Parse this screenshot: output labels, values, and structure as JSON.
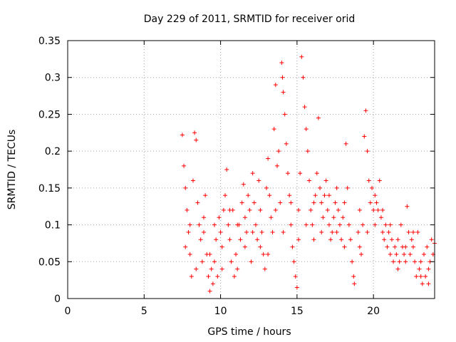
{
  "chart_data": {
    "type": "scatter",
    "title": "Day 229 of 2011, SRMTID for receiver orid",
    "xlabel": "GPS time / hours",
    "ylabel": "SRMTID / TECUs",
    "xlim": [
      0,
      24
    ],
    "ylim": [
      0,
      0.35
    ],
    "x_ticks": [
      0,
      5,
      10,
      15,
      20
    ],
    "y_ticks": [
      0,
      0.05,
      0.1,
      0.15,
      0.2,
      0.25,
      0.3,
      0.35
    ],
    "x_tick_labels": [
      "0",
      "5",
      "10",
      "15",
      "20"
    ],
    "y_tick_labels": [
      "0",
      "0.05",
      "0.1",
      "0.15",
      "0.2",
      "0.25",
      "0.3",
      "0.35"
    ],
    "grid": true,
    "marker": "plus",
    "series": [
      {
        "name": "SRMTID",
        "color": "#ff0000",
        "points": [
          [
            7.5,
            0.222
          ],
          [
            7.6,
            0.18
          ],
          [
            7.7,
            0.15
          ],
          [
            7.8,
            0.12
          ],
          [
            7.9,
            0.09
          ],
          [
            8.0,
            0.06
          ],
          [
            8.1,
            0.03
          ],
          [
            8.2,
            0.16
          ],
          [
            8.3,
            0.225
          ],
          [
            8.4,
            0.215
          ],
          [
            8.5,
            0.13
          ],
          [
            8.6,
            0.1
          ],
          [
            8.7,
            0.08
          ],
          [
            8.8,
            0.05
          ],
          [
            8.9,
            0.11
          ],
          [
            9.0,
            0.14
          ],
          [
            9.1,
            0.06
          ],
          [
            9.2,
            0.03
          ],
          [
            9.3,
            0.01
          ],
          [
            9.4,
            0.04
          ],
          [
            9.5,
            0.02
          ],
          [
            9.6,
            0.05
          ],
          [
            9.7,
            0.08
          ],
          [
            9.8,
            0.03
          ],
          [
            9.9,
            0.11
          ],
          [
            10.0,
            0.09
          ],
          [
            10.1,
            0.07
          ],
          [
            10.2,
            0.12
          ],
          [
            10.3,
            0.14
          ],
          [
            10.4,
            0.175
          ],
          [
            10.5,
            0.1
          ],
          [
            10.6,
            0.08
          ],
          [
            10.7,
            0.05
          ],
          [
            10.8,
            0.12
          ],
          [
            10.9,
            0.03
          ],
          [
            11.0,
            0.06
          ],
          [
            11.1,
            0.04
          ],
          [
            11.2,
            0.1
          ],
          [
            11.3,
            0.08
          ],
          [
            11.4,
            0.13
          ],
          [
            11.5,
            0.155
          ],
          [
            11.6,
            0.11
          ],
          [
            11.7,
            0.09
          ],
          [
            11.8,
            0.14
          ],
          [
            11.9,
            0.12
          ],
          [
            12.0,
            0.05
          ],
          [
            12.1,
            0.17
          ],
          [
            12.2,
            0.13
          ],
          [
            12.3,
            0.1
          ],
          [
            12.4,
            0.08
          ],
          [
            12.5,
            0.16
          ],
          [
            12.6,
            0.12
          ],
          [
            12.7,
            0.09
          ],
          [
            12.8,
            0.06
          ],
          [
            12.9,
            0.04
          ],
          [
            13.0,
            0.15
          ],
          [
            13.1,
            0.19
          ],
          [
            13.2,
            0.14
          ],
          [
            13.3,
            0.11
          ],
          [
            13.4,
            0.09
          ],
          [
            13.5,
            0.23
          ],
          [
            13.6,
            0.29
          ],
          [
            13.7,
            0.18
          ],
          [
            13.8,
            0.2
          ],
          [
            13.9,
            0.13
          ],
          [
            14.0,
            0.32
          ],
          [
            14.05,
            0.3
          ],
          [
            14.1,
            0.28
          ],
          [
            14.2,
            0.25
          ],
          [
            14.3,
            0.21
          ],
          [
            14.4,
            0.17
          ],
          [
            14.5,
            0.14
          ],
          [
            14.6,
            0.1
          ],
          [
            14.7,
            0.07
          ],
          [
            14.8,
            0.05
          ],
          [
            14.9,
            0.03
          ],
          [
            15.0,
            0.015
          ],
          [
            15.1,
            0.12
          ],
          [
            15.2,
            0.17
          ],
          [
            15.3,
            0.328
          ],
          [
            15.4,
            0.3
          ],
          [
            15.5,
            0.26
          ],
          [
            15.6,
            0.23
          ],
          [
            15.7,
            0.2
          ],
          [
            15.8,
            0.16
          ],
          [
            15.9,
            0.12
          ],
          [
            16.0,
            0.1
          ],
          [
            16.1,
            0.08
          ],
          [
            16.2,
            0.14
          ],
          [
            16.3,
            0.17
          ],
          [
            16.4,
            0.245
          ],
          [
            16.5,
            0.15
          ],
          [
            16.6,
            0.13
          ],
          [
            16.7,
            0.11
          ],
          [
            16.8,
            0.14
          ],
          [
            16.9,
            0.16
          ],
          [
            17.0,
            0.12
          ],
          [
            17.1,
            0.1
          ],
          [
            17.2,
            0.08
          ],
          [
            17.3,
            0.09
          ],
          [
            17.4,
            0.11
          ],
          [
            17.5,
            0.13
          ],
          [
            17.6,
            0.15
          ],
          [
            17.7,
            0.12
          ],
          [
            17.8,
            0.1
          ],
          [
            17.9,
            0.08
          ],
          [
            18.0,
            0.11
          ],
          [
            18.1,
            0.13
          ],
          [
            18.2,
            0.21
          ],
          [
            18.3,
            0.15
          ],
          [
            18.4,
            0.1
          ],
          [
            18.5,
            0.08
          ],
          [
            18.6,
            0.05
          ],
          [
            18.7,
            0.03
          ],
          [
            18.75,
            0.02
          ],
          [
            19.0,
            0.09
          ],
          [
            19.1,
            0.07
          ],
          [
            19.2,
            0.06
          ],
          [
            19.3,
            0.1
          ],
          [
            19.4,
            0.22
          ],
          [
            19.5,
            0.255
          ],
          [
            19.6,
            0.2
          ],
          [
            19.7,
            0.16
          ],
          [
            19.8,
            0.13
          ],
          [
            19.9,
            0.15
          ],
          [
            20.0,
            0.12
          ],
          [
            20.1,
            0.1
          ],
          [
            20.2,
            0.13
          ],
          [
            20.3,
            0.12
          ],
          [
            20.4,
            0.16
          ],
          [
            20.5,
            0.11
          ],
          [
            20.6,
            0.09
          ],
          [
            20.7,
            0.08
          ],
          [
            20.8,
            0.1
          ],
          [
            20.9,
            0.07
          ],
          [
            21.0,
            0.09
          ],
          [
            21.1,
            0.06
          ],
          [
            21.2,
            0.08
          ],
          [
            21.3,
            0.05
          ],
          [
            21.4,
            0.07
          ],
          [
            21.5,
            0.06
          ],
          [
            21.6,
            0.04
          ],
          [
            21.7,
            0.05
          ],
          [
            21.8,
            0.1
          ],
          [
            21.9,
            0.07
          ],
          [
            22.0,
            0.06
          ],
          [
            22.1,
            0.05
          ],
          [
            22.2,
            0.125
          ],
          [
            22.3,
            0.09
          ],
          [
            22.4,
            0.06
          ],
          [
            22.5,
            0.08
          ],
          [
            22.6,
            0.07
          ],
          [
            22.7,
            0.05
          ],
          [
            22.8,
            0.03
          ],
          [
            22.9,
            0.09
          ],
          [
            23.0,
            0.04
          ],
          [
            23.1,
            0.05
          ],
          [
            23.2,
            0.02
          ],
          [
            23.3,
            0.06
          ],
          [
            23.4,
            0.03
          ],
          [
            23.5,
            0.07
          ],
          [
            23.6,
            0.04
          ],
          [
            23.7,
            0.05
          ],
          [
            23.8,
            0.08
          ],
          [
            23.9,
            0.06
          ],
          [
            24.0,
            0.075
          ],
          [
            7.7,
            0.07
          ],
          [
            8.0,
            0.1
          ],
          [
            8.4,
            0.04
          ],
          [
            8.9,
            0.09
          ],
          [
            9.3,
            0.06
          ],
          [
            9.6,
            0.1
          ],
          [
            10.1,
            0.04
          ],
          [
            10.6,
            0.12
          ],
          [
            11.1,
            0.1
          ],
          [
            11.6,
            0.07
          ],
          [
            12.1,
            0.09
          ],
          [
            12.6,
            0.07
          ],
          [
            13.1,
            0.06
          ],
          [
            13.6,
            0.12
          ],
          [
            14.1,
            0.09
          ],
          [
            14.6,
            0.13
          ],
          [
            15.1,
            0.08
          ],
          [
            15.6,
            0.1
          ],
          [
            16.1,
            0.13
          ],
          [
            16.6,
            0.09
          ],
          [
            17.1,
            0.14
          ],
          [
            17.6,
            0.09
          ],
          [
            18.1,
            0.07
          ],
          [
            19.1,
            0.12
          ],
          [
            19.6,
            0.09
          ],
          [
            20.1,
            0.14
          ],
          [
            20.6,
            0.12
          ],
          [
            21.1,
            0.1
          ],
          [
            21.6,
            0.08
          ],
          [
            22.1,
            0.07
          ],
          [
            22.6,
            0.09
          ],
          [
            23.1,
            0.03
          ],
          [
            23.6,
            0.02
          ]
        ]
      }
    ]
  }
}
